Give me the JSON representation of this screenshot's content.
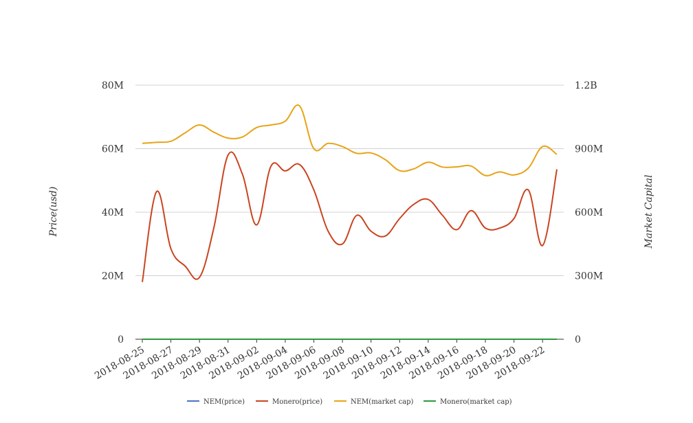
{
  "chart_data": {
    "type": "line",
    "title": "",
    "x": [
      "2018-08-25",
      "2018-08-26",
      "2018-08-27",
      "2018-08-28",
      "2018-08-29",
      "2018-08-30",
      "2018-08-31",
      "2018-09-01",
      "2018-09-02",
      "2018-09-03",
      "2018-09-04",
      "2018-09-05",
      "2018-09-06",
      "2018-09-07",
      "2018-09-08",
      "2018-09-09",
      "2018-09-10",
      "2018-09-11",
      "2018-09-12",
      "2018-09-13",
      "2018-09-14",
      "2018-09-15",
      "2018-09-16",
      "2018-09-17",
      "2018-09-18",
      "2018-09-19",
      "2018-09-20",
      "2018-09-21",
      "2018-09-22",
      "2018-09-23"
    ],
    "x_tick_labels": [
      "2018-08-25",
      "2018-08-27",
      "2018-08-29",
      "2018-08-31",
      "2018-09-02",
      "2018-09-04",
      "2018-09-06",
      "2018-09-08",
      "2018-09-10",
      "2018-09-12",
      "2018-09-14",
      "2018-09-16",
      "2018-09-18",
      "2018-09-20",
      "2018-09-22"
    ],
    "y_left": {
      "label": "Price(usd)",
      "ticks": [
        "0",
        "20M",
        "40M",
        "60M",
        "80M"
      ],
      "range": [
        0,
        80000000
      ]
    },
    "y_right": {
      "label": "Market Capital",
      "ticks": [
        "0",
        "300M",
        "600M",
        "900M",
        "1.2B"
      ],
      "range": [
        0,
        1200000000
      ]
    },
    "grid": true,
    "legend_position": "bottom",
    "series": [
      {
        "name": "NEM(price)",
        "color": "#4a72c4",
        "axis": "left",
        "values": [
          0.1,
          0.1,
          0.1,
          0.1,
          0.1,
          0.1,
          0.1,
          0.1,
          0.1,
          0.1,
          0.1,
          0.1,
          0.1,
          0.1,
          0.1,
          0.1,
          0.1,
          0.1,
          0.1,
          0.1,
          0.1,
          0.1,
          0.1,
          0.1,
          0.1,
          0.1,
          0.1,
          0.1,
          0.1,
          0.1
        ]
      },
      {
        "name": "Monero(price)",
        "color": "#c9441f",
        "axis": "left",
        "values": [
          18000000,
          46500000,
          28500000,
          23000000,
          19500000,
          35000000,
          58000000,
          52000000,
          36000000,
          54500000,
          53000000,
          55000000,
          47000000,
          34000000,
          30000000,
          39000000,
          34000000,
          32500000,
          38000000,
          42500000,
          44000000,
          39000000,
          34500000,
          40500000,
          35000000,
          35000000,
          38000000,
          47000000,
          29500000,
          53500000
        ]
      },
      {
        "name": "NEM(market cap)",
        "color": "#e8a317",
        "axis": "right",
        "values": [
          925000000,
          930000000,
          935000000,
          975000000,
          1012000000,
          978000000,
          950000000,
          955000000,
          1000000000,
          1012000000,
          1030000000,
          1102000000,
          900000000,
          925000000,
          910000000,
          878000000,
          880000000,
          848000000,
          796000000,
          805000000,
          836000000,
          813000000,
          814000000,
          818000000,
          773000000,
          790000000,
          776000000,
          808000000,
          910000000,
          873000000
        ]
      },
      {
        "name": "Monero(market cap)",
        "color": "#2a9a3c",
        "axis": "right",
        "values": [
          0,
          0,
          0,
          0,
          0,
          0,
          0,
          0,
          0,
          0,
          0,
          0,
          0,
          0,
          0,
          0,
          0,
          0,
          0,
          0,
          0,
          0,
          0,
          0,
          0,
          0,
          0,
          0,
          0,
          0
        ]
      }
    ]
  }
}
